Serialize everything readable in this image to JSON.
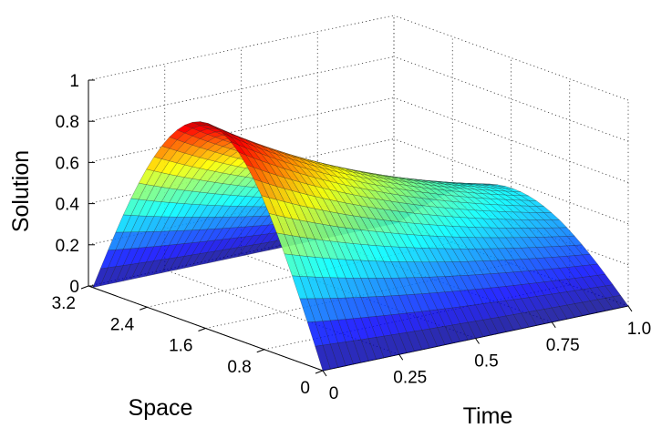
{
  "chart_data": {
    "type": "surface",
    "title": "",
    "xlabel": "Time",
    "ylabel": "Space",
    "zlabel": "Solution",
    "x_ticks": [
      "0",
      "0.25",
      "0.5",
      "0.75",
      "1.0"
    ],
    "y_ticks": [
      "0",
      "0.8",
      "1.6",
      "2.4",
      "3.2"
    ],
    "z_ticks": [
      "0",
      "0.2",
      "0.4",
      "0.6",
      "0.8",
      "1"
    ],
    "xlim": [
      0,
      1
    ],
    "ylim": [
      0,
      3.2
    ],
    "zlim": [
      0,
      1
    ],
    "grid": true,
    "colormap": "jet",
    "surface": {
      "function": "exp(-t) * sin(x)",
      "t_range": [
        0,
        1
      ],
      "x_range": [
        0,
        3.14159
      ],
      "peak_at_t0": 1.0,
      "peak_at_t1": 0.37
    }
  }
}
